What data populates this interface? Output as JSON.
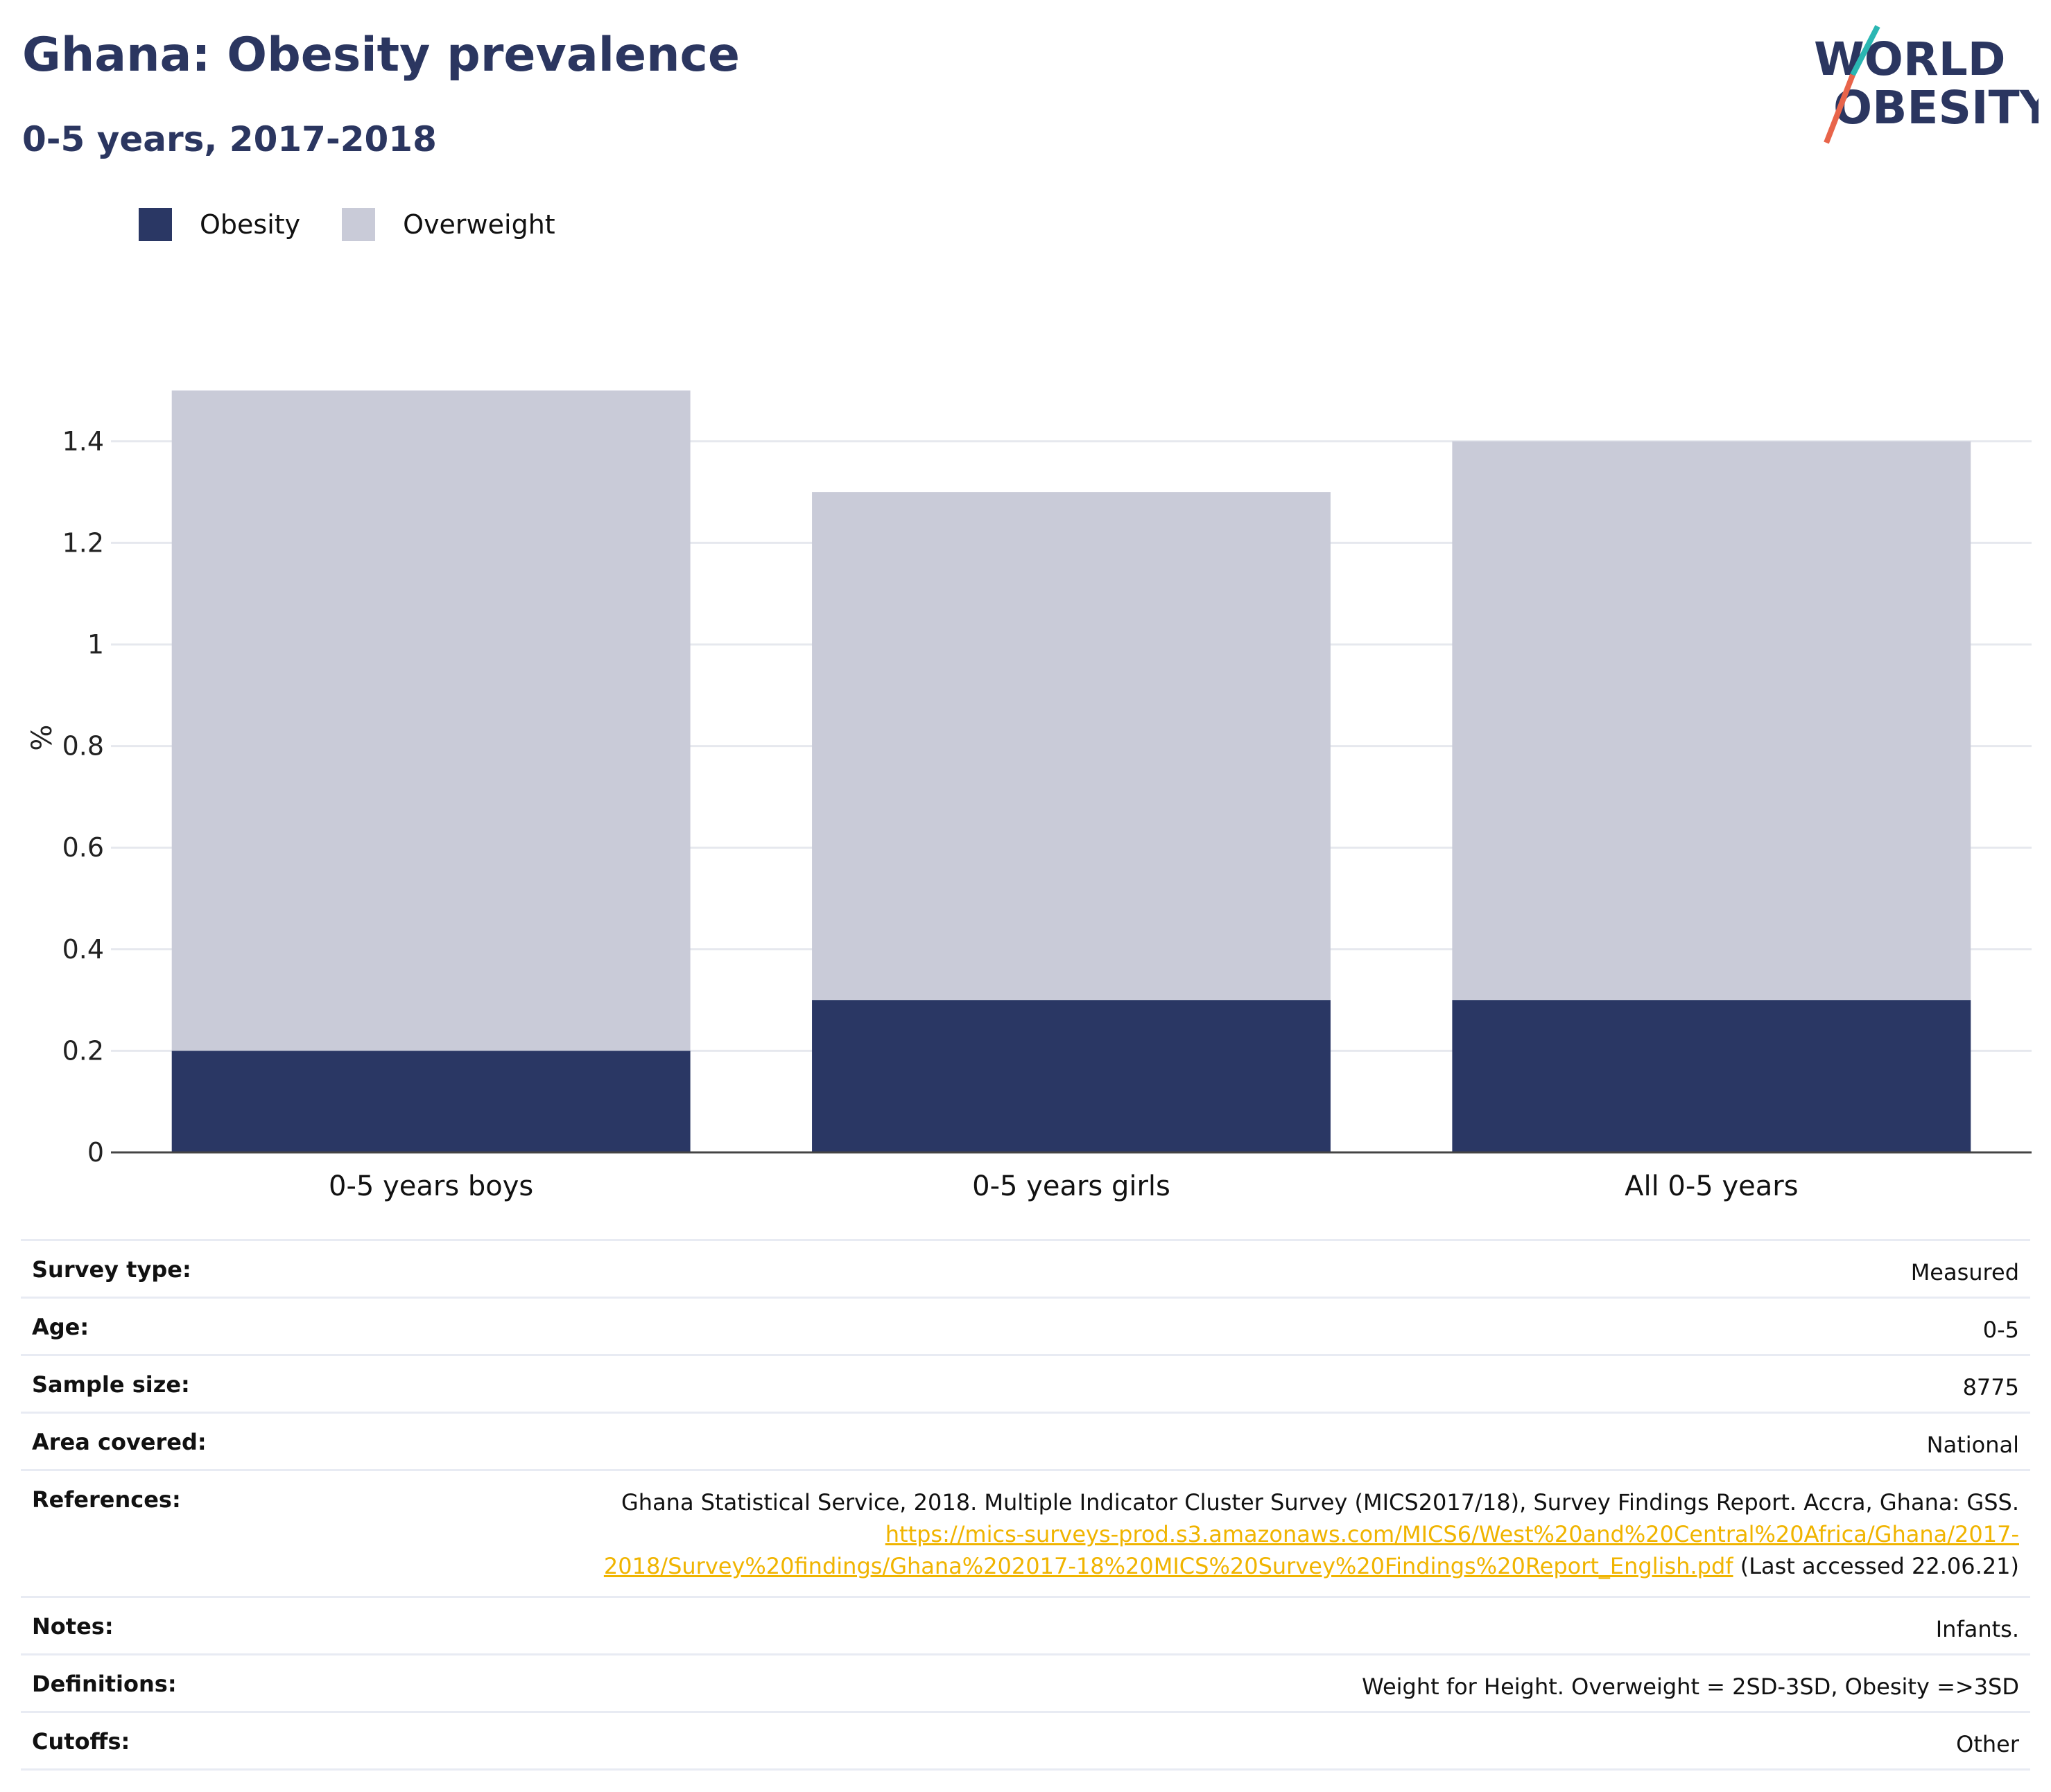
{
  "header": {
    "title": "Ghana: Obesity prevalence",
    "subtitle": "0-5 years, 2017-2018"
  },
  "logo": {
    "line1": "WORLD",
    "line2": "OBESITY"
  },
  "legend": [
    {
      "label": "Obesity",
      "color": "#2a3764"
    },
    {
      "label": "Overweight",
      "color": "#c9cbd8"
    }
  ],
  "chart_data": {
    "type": "bar",
    "stacked": true,
    "categories": [
      "0-5 years boys",
      "0-5 years girls",
      "All 0-5 years"
    ],
    "series": [
      {
        "name": "Obesity",
        "values": [
          0.2,
          0.3,
          0.3
        ],
        "color": "#2a3764"
      },
      {
        "name": "Overweight",
        "values": [
          1.3,
          1.0,
          1.1
        ],
        "color": "#c9cbd8"
      }
    ],
    "ylabel": "%",
    "ylim": [
      0,
      1.5
    ],
    "yticks": [
      0,
      0.2,
      0.4,
      0.6,
      0.8,
      1,
      1.2,
      1.4
    ],
    "ytick_labels": [
      "0",
      "0.2",
      "0.4",
      "0.6",
      "0.8",
      "1",
      "1.2",
      "1.4"
    ],
    "grid": true,
    "legend_position": "top-left"
  },
  "info": {
    "survey_type": {
      "label": "Survey type:",
      "value": "Measured"
    },
    "age": {
      "label": "Age:",
      "value": "0-5"
    },
    "sample_size": {
      "label": "Sample size:",
      "value": "8775"
    },
    "area_covered": {
      "label": "Area covered:",
      "value": "National"
    },
    "references": {
      "label": "References:",
      "text": "Ghana Statistical Service, 2018. Multiple Indicator Cluster Survey (MICS2017/18), Survey Findings Report. Accra, Ghana: GSS.",
      "link_line1": "https://mics-surveys-prod.s3.amazonaws.com/MICS6/West%20and%20Central%20Africa/Ghana/2017-",
      "link_line2": "2018/Survey%20findings/Ghana%202017-18%20MICS%20Survey%20Findings%20Report_English.pdf",
      "accessed": "(Last accessed 22.06.21)"
    },
    "notes": {
      "label": "Notes:",
      "value": "Infants."
    },
    "definitions": {
      "label": "Definitions:",
      "value": "Weight for Height. Overweight = 2SD-3SD, Obesity =>3SD"
    },
    "cutoffs": {
      "label": "Cutoffs:",
      "value": "Other"
    }
  }
}
